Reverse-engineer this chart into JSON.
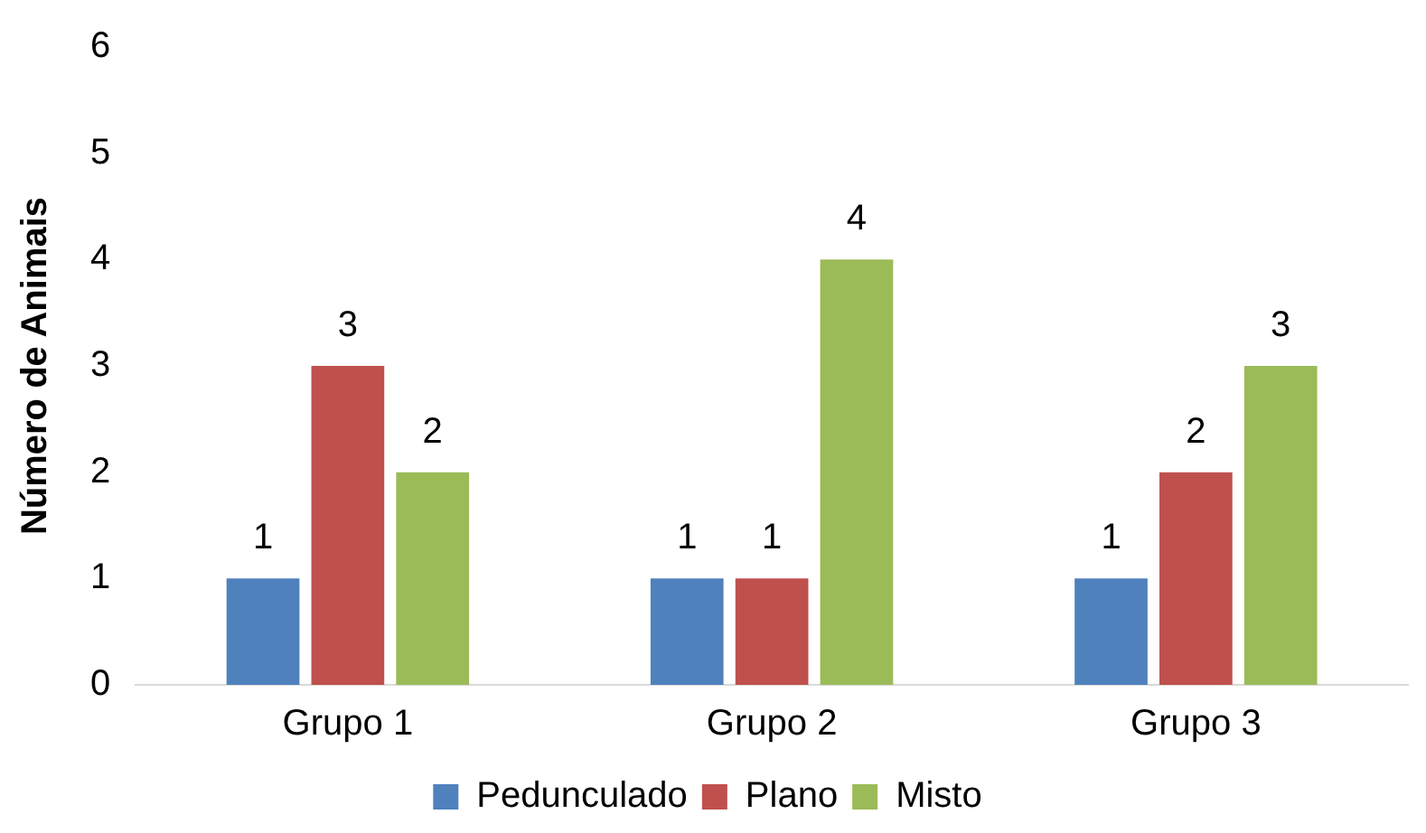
{
  "chart_data": {
    "type": "bar",
    "ylabel": "Número de Animais",
    "categories": [
      "Grupo 1",
      "Grupo 2",
      "Grupo 3"
    ],
    "series": [
      {
        "name": "Pedunculado",
        "color": "#4f81bd",
        "values": [
          1,
          1,
          1
        ]
      },
      {
        "name": "Plano",
        "color": "#c0504d",
        "values": [
          3,
          1,
          2
        ]
      },
      {
        "name": "Misto",
        "color": "#9bbb59",
        "values": [
          2,
          4,
          3
        ]
      }
    ],
    "ylim": [
      0,
      6
    ],
    "yticks": [
      0,
      1,
      2,
      3,
      4,
      5,
      6
    ],
    "grid": false,
    "legend": "bottom",
    "data_labels": true
  }
}
